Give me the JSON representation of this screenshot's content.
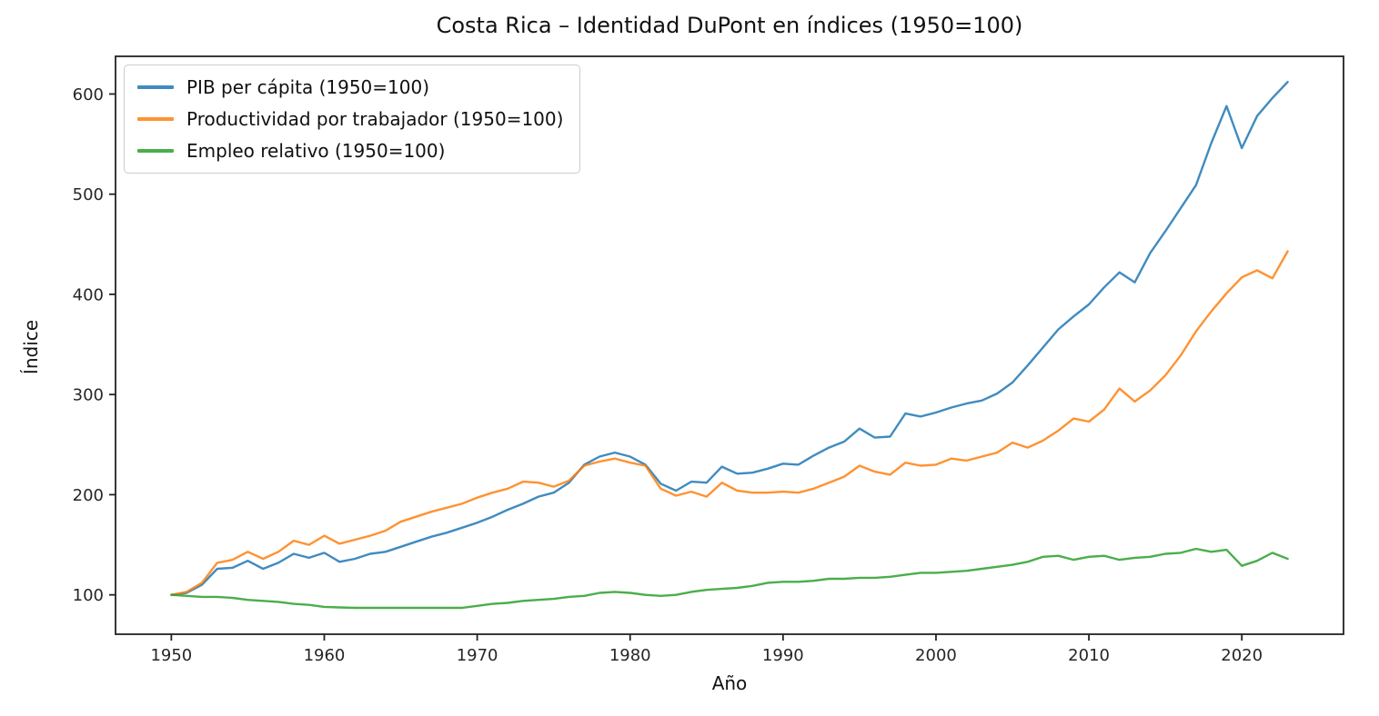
{
  "chart_data": {
    "type": "line",
    "title": "Costa Rica – Identidad DuPont en índices (1950=100)",
    "xlabel": "Año",
    "ylabel": "Índice",
    "grid": false,
    "legend_position": "upper left",
    "xlim": [
      1946.35,
      2026.65
    ],
    "ylim": [
      60.7,
      637.6
    ],
    "xticks": [
      1950,
      1960,
      1970,
      1980,
      1990,
      2000,
      2010,
      2020
    ],
    "yticks": [
      100,
      200,
      300,
      400,
      500,
      600
    ],
    "x": [
      1950,
      1951,
      1952,
      1953,
      1954,
      1955,
      1956,
      1957,
      1958,
      1959,
      1960,
      1961,
      1962,
      1963,
      1964,
      1965,
      1966,
      1967,
      1968,
      1969,
      1970,
      1971,
      1972,
      1973,
      1974,
      1975,
      1976,
      1977,
      1978,
      1979,
      1980,
      1981,
      1982,
      1983,
      1984,
      1985,
      1986,
      1987,
      1988,
      1989,
      1990,
      1991,
      1992,
      1993,
      1994,
      1995,
      1996,
      1997,
      1998,
      1999,
      2000,
      2001,
      2002,
      2003,
      2004,
      2005,
      2006,
      2007,
      2008,
      2009,
      2010,
      2011,
      2012,
      2013,
      2014,
      2015,
      2016,
      2017,
      2018,
      2019,
      2020,
      2021,
      2022,
      2023
    ],
    "series": [
      {
        "name": "PIB per cápita (1950=100)",
        "color": "#1f77b4",
        "values": [
          100,
          102,
          110,
          126,
          127,
          134,
          126,
          132,
          141,
          137,
          142,
          133,
          136,
          141,
          143,
          148,
          153,
          158,
          162,
          167,
          172,
          178,
          185,
          191,
          198,
          202,
          212,
          230,
          238,
          242,
          238,
          230,
          211,
          204,
          213,
          212,
          228,
          221,
          222,
          226,
          231,
          230,
          239,
          247,
          253,
          266,
          257,
          258,
          281,
          278,
          282,
          287,
          291,
          294,
          301,
          312,
          329,
          347,
          365,
          378,
          390,
          407,
          422,
          412,
          441,
          463,
          486,
          509,
          551,
          588,
          546,
          578,
          596,
          612
        ]
      },
      {
        "name": "Productividad por trabajador (1950=100)",
        "color": "#ff7f0e",
        "values": [
          100,
          103,
          112,
          132,
          135,
          143,
          136,
          143,
          154,
          150,
          159,
          151,
          155,
          159,
          164,
          173,
          178,
          183,
          187,
          191,
          197,
          202,
          206,
          213,
          212,
          208,
          214,
          229,
          233,
          236,
          232,
          229,
          206,
          199,
          203,
          198,
          212,
          204,
          202,
          202,
          203,
          202,
          206,
          212,
          218,
          229,
          223,
          220,
          232,
          229,
          230,
          236,
          234,
          238,
          242,
          252,
          247,
          254,
          264,
          276,
          273,
          285,
          306,
          293,
          304,
          319,
          339,
          363,
          383,
          401,
          417,
          424,
          416,
          443
        ]
      },
      {
        "name": "Empleo relativo (1950=100)",
        "color": "#2ca02c",
        "values": [
          100,
          99,
          98,
          98,
          97,
          95,
          94,
          93,
          91,
          90,
          88,
          87.5,
          87,
          87,
          87,
          87,
          87,
          87,
          87,
          87,
          89,
          91,
          92,
          94,
          95,
          96,
          98,
          99,
          102,
          103,
          102,
          100,
          99,
          100,
          103,
          105,
          106,
          107,
          109,
          112,
          113,
          113,
          114,
          116,
          116,
          117,
          117,
          118,
          120,
          122,
          122,
          123,
          124,
          126,
          128,
          130,
          133,
          138,
          139,
          135,
          138,
          139,
          135,
          137,
          138,
          141,
          142,
          146,
          143,
          145,
          129,
          134,
          142,
          136
        ]
      }
    ],
    "axis_color": "#222222",
    "tick_label_color": "#262626"
  }
}
